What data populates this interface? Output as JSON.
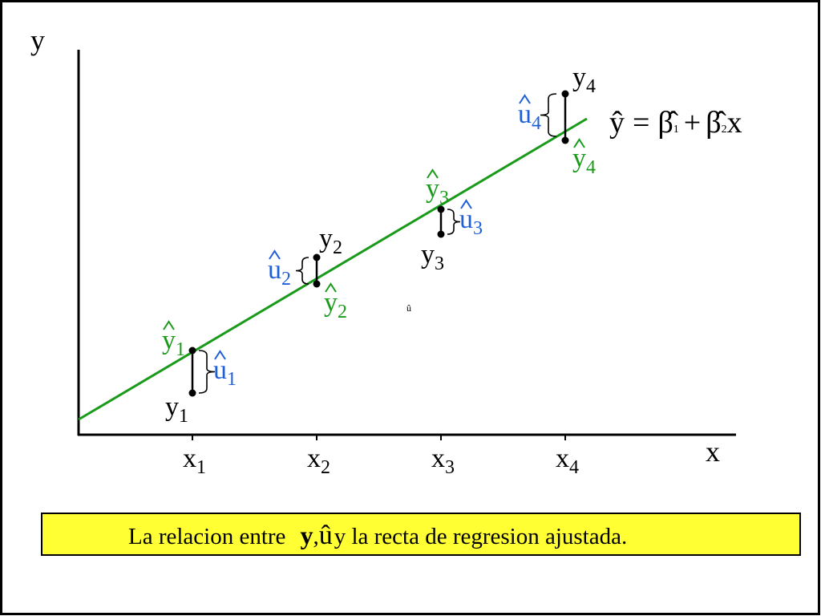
{
  "axes": {
    "y": "y",
    "x": "x"
  },
  "x_labels": [
    {
      "base": "x",
      "sub": "1"
    },
    {
      "base": "x",
      "sub": "2"
    },
    {
      "base": "x",
      "sub": "3"
    },
    {
      "base": "x",
      "sub": "4"
    }
  ],
  "observed": [
    {
      "base": "y",
      "sub": "1"
    },
    {
      "base": "y",
      "sub": "2"
    },
    {
      "base": "y",
      "sub": "3"
    },
    {
      "base": "y",
      "sub": "4"
    }
  ],
  "fitted": [
    {
      "base": "y",
      "sub": "1"
    },
    {
      "base": "y",
      "sub": "2"
    },
    {
      "base": "y",
      "sub": "3"
    },
    {
      "base": "y",
      "sub": "4"
    }
  ],
  "residuals": [
    {
      "base": "u",
      "sub": "1"
    },
    {
      "base": "u",
      "sub": "2"
    },
    {
      "base": "u",
      "sub": "3"
    },
    {
      "base": "u",
      "sub": "4"
    }
  ],
  "equation": {
    "lhs": "ŷ",
    "eq": "=",
    "b1": "β̂",
    "b1_sub": "1",
    "plus": "+",
    "b2": "β̂",
    "b2_sub": "2",
    "x": "x"
  },
  "stray": "û",
  "caption": {
    "pre": "La relacion entre",
    "y": "y",
    "comma": ",",
    "u": "û",
    "post": "y la recta de regresion ajustada."
  }
}
